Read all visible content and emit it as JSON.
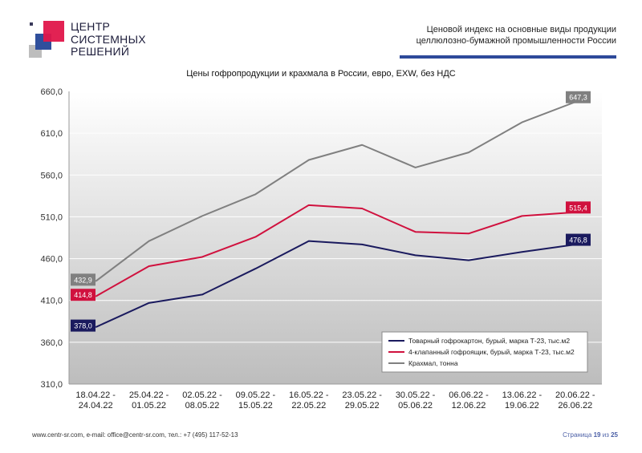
{
  "logo": {
    "line1": "ЦЕНТР",
    "line2": "СИСТЕМНЫХ",
    "line3": "РЕШЕНИЙ"
  },
  "header": {
    "line1": "Ценовой индекс на основные виды продукции",
    "line2": "целлюлозно-бумажной промышленности России"
  },
  "footer": {
    "contacts": "www.centr-sr.com, e-mail: office@centr-sr.com, тел.: +7 (495) 117-52-13",
    "page_prefix": "Страница",
    "page_current": "19",
    "page_sep": "из",
    "page_total": "25"
  },
  "chart_data": {
    "type": "line",
    "title": "Цены гофропродукции и крахмала в России, евро, EXW, без НДС",
    "categories": [
      [
        "18.04.22 -",
        "24.04.22"
      ],
      [
        "25.04.22 -",
        "01.05.22"
      ],
      [
        "02.05.22 -",
        "08.05.22"
      ],
      [
        "09.05.22 -",
        "15.05.22"
      ],
      [
        "16.05.22 -",
        "22.05.22"
      ],
      [
        "23.05.22 -",
        "29.05.22"
      ],
      [
        "30.05.22 -",
        "05.06.22"
      ],
      [
        "06.06.22 -",
        "12.06.22"
      ],
      [
        "13.06.22 -",
        "19.06.22"
      ],
      [
        "20.06.22 -",
        "26.06.22"
      ]
    ],
    "ylim": [
      310,
      660
    ],
    "yticks": [
      "310,0",
      "360,0",
      "410,0",
      "460,0",
      "510,0",
      "560,0",
      "610,0",
      "660,0"
    ],
    "grid": true,
    "legend_position": "bottom-right",
    "series": [
      {
        "name": "Товарный гофрокартон, бурый, марка Т-23, тыс.м2",
        "color": "#1a1a5e",
        "values": [
          378.0,
          407,
          417,
          448,
          481,
          477,
          464,
          458,
          468,
          476.8
        ],
        "labels": {
          "0": "378,0",
          "9": "476,8"
        }
      },
      {
        "name": "4-клапанный гофроящик, бурый, марка Т-23, тыс.м2",
        "color": "#d0113e",
        "values": [
          414.8,
          451,
          462,
          486,
          524,
          520,
          492,
          490,
          511,
          515.4
        ],
        "labels": {
          "0": "414,8",
          "9": "515,4"
        }
      },
      {
        "name": "Крахмал, тонна",
        "color": "#808080",
        "values": [
          432.9,
          481,
          511,
          537,
          578,
          596,
          569,
          587,
          623,
          647.3
        ],
        "labels": {
          "0": "432,9",
          "9": "647,3"
        }
      }
    ]
  }
}
